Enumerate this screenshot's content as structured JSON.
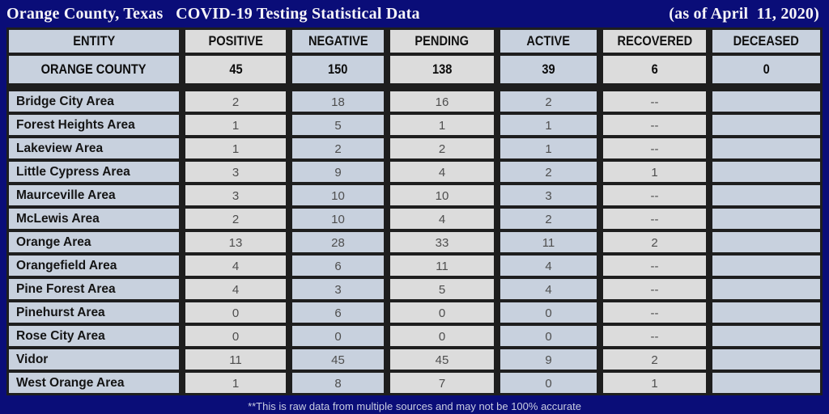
{
  "title_bar": {
    "title": "Orange County, Texas   COVID-19 Testing Statistical Data",
    "date_note": "(as of April  11, 2020)"
  },
  "chart_data": {
    "type": "table",
    "title": "Orange County, Texas COVID-19 Testing Statistical Data (as of April 11, 2020)",
    "columns": [
      "ENTITY",
      "POSITIVE",
      "NEGATIVE",
      "PENDING",
      "ACTIVE",
      "RECOVERED",
      "DECEASED"
    ],
    "summary_row": {
      "entity": "ORANGE COUNTY",
      "positive": "45",
      "negative": "150",
      "pending": "138",
      "active": "39",
      "recovered": "6",
      "deceased": "0"
    },
    "rows": [
      {
        "entity": "Bridge City Area",
        "positive": "2",
        "negative": "18",
        "pending": "16",
        "active": "2",
        "recovered": "--",
        "deceased": ""
      },
      {
        "entity": "Forest Heights Area",
        "positive": "1",
        "negative": "5",
        "pending": "1",
        "active": "1",
        "recovered": "--",
        "deceased": ""
      },
      {
        "entity": "Lakeview Area",
        "positive": "1",
        "negative": "2",
        "pending": "2",
        "active": "1",
        "recovered": "--",
        "deceased": ""
      },
      {
        "entity": "Little Cypress Area",
        "positive": "3",
        "negative": "9",
        "pending": "4",
        "active": "2",
        "recovered": "1",
        "deceased": ""
      },
      {
        "entity": "Maurceville Area",
        "positive": "3",
        "negative": "10",
        "pending": "10",
        "active": "3",
        "recovered": "--",
        "deceased": ""
      },
      {
        "entity": "McLewis Area",
        "positive": "2",
        "negative": "10",
        "pending": "4",
        "active": "2",
        "recovered": "--",
        "deceased": ""
      },
      {
        "entity": "Orange Area",
        "positive": "13",
        "negative": "28",
        "pending": "33",
        "active": "11",
        "recovered": "2",
        "deceased": ""
      },
      {
        "entity": "Orangefield Area",
        "positive": "4",
        "negative": "6",
        "pending": "11",
        "active": "4",
        "recovered": "--",
        "deceased": ""
      },
      {
        "entity": "Pine Forest Area",
        "positive": "4",
        "negative": "3",
        "pending": "5",
        "active": "4",
        "recovered": "--",
        "deceased": ""
      },
      {
        "entity": "Pinehurst Area",
        "positive": "0",
        "negative": "6",
        "pending": "0",
        "active": "0",
        "recovered": "--",
        "deceased": ""
      },
      {
        "entity": "Rose City Area",
        "positive": "0",
        "negative": "0",
        "pending": "0",
        "active": "0",
        "recovered": "--",
        "deceased": ""
      },
      {
        "entity": "Vidor",
        "positive": "11",
        "negative": "45",
        "pending": "45",
        "active": "9",
        "recovered": "2",
        "deceased": ""
      },
      {
        "entity": "West Orange Area",
        "positive": "1",
        "negative": "8",
        "pending": "7",
        "active": "0",
        "recovered": "1",
        "deceased": ""
      }
    ]
  },
  "footer": {
    "disclaimer": "**This is raw data from multiple sources and may not be 100% accurate"
  },
  "colors": {
    "background": "#0a0d78",
    "cell_blue": "#c8d1de",
    "cell_gray": "#dcdcdc",
    "border": "#1e1e1e",
    "title_text": "#f6f4f8",
    "number_text": "#4e4e4e"
  }
}
